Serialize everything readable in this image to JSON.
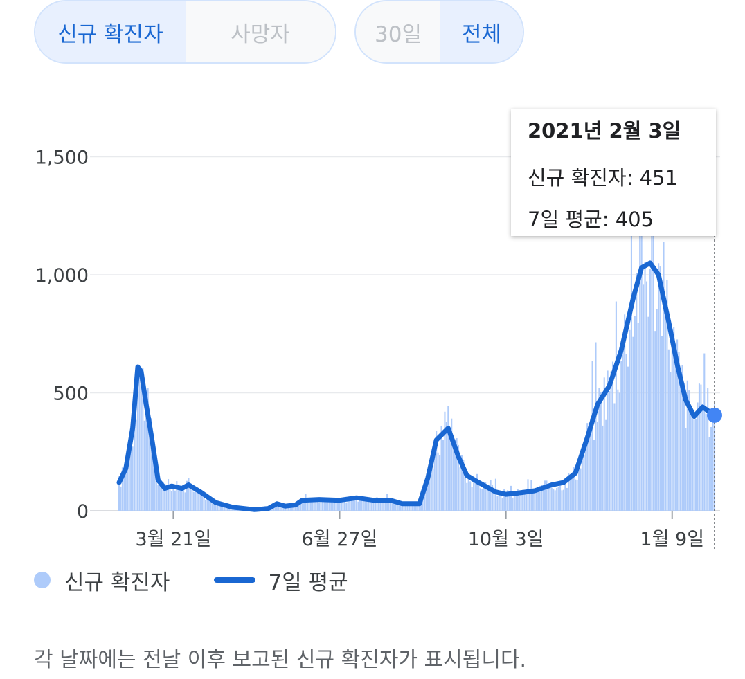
{
  "toggles": {
    "metric": {
      "options": [
        "신규 확진자",
        "사망자"
      ],
      "selected": "신규 확진자"
    },
    "range": {
      "options": [
        "30일",
        "전체"
      ],
      "selected": "전체"
    }
  },
  "tooltip": {
    "date": "2021년 2월 3일",
    "new_cases_label": "신규 확진자: 451",
    "avg_label": "7일 평균: 405"
  },
  "legend": {
    "bars": "신규 확진자",
    "line": "7일 평균"
  },
  "footnote": "각 날짜에는 전날 이후 보고된 신규 확진자가 표시됩니다.",
  "colors": {
    "bar": "#aecbfa",
    "line": "#1967d2",
    "active_bg": "#e8f0fe",
    "active_text": "#1967d2",
    "inactive_text": "#bdc1c6"
  },
  "chart_data": {
    "type": "bar",
    "title": "",
    "xlabel": "",
    "ylabel": "",
    "ylim": [
      0,
      1800
    ],
    "y_ticks": [
      0,
      500,
      1000,
      1500
    ],
    "y_tick_labels": [
      "0",
      "500",
      "1,000",
      "1,500"
    ],
    "x_tick_labels": [
      {
        "label": "3월 21일",
        "date": "2020-03-21"
      },
      {
        "label": "6월 27일",
        "date": "2020-06-27"
      },
      {
        "label": "10월 3일",
        "date": "2020-10-03"
      },
      {
        "label": "1월 9일",
        "date": "2021-01-09"
      }
    ],
    "x_range": [
      "2020-02-18",
      "2021-02-03"
    ],
    "series": [
      {
        "name": "신규 확진자",
        "kind": "bar",
        "daily_estimates": []
      },
      {
        "name": "7일 평균",
        "kind": "line",
        "points": [
          [
            "2020-02-18",
            120
          ],
          [
            "2020-02-22",
            180
          ],
          [
            "2020-02-26",
            350
          ],
          [
            "2020-02-29",
            610
          ],
          [
            "2020-03-02",
            590
          ],
          [
            "2020-03-05",
            450
          ],
          [
            "2020-03-08",
            320
          ],
          [
            "2020-03-12",
            130
          ],
          [
            "2020-03-16",
            95
          ],
          [
            "2020-03-20",
            105
          ],
          [
            "2020-03-26",
            95
          ],
          [
            "2020-03-30",
            110
          ],
          [
            "2020-04-06",
            80
          ],
          [
            "2020-04-15",
            35
          ],
          [
            "2020-04-25",
            15
          ],
          [
            "2020-05-08",
            5
          ],
          [
            "2020-05-16",
            10
          ],
          [
            "2020-05-21",
            30
          ],
          [
            "2020-05-26",
            20
          ],
          [
            "2020-06-01",
            25
          ],
          [
            "2020-06-05",
            45
          ],
          [
            "2020-06-15",
            48
          ],
          [
            "2020-06-27",
            45
          ],
          [
            "2020-07-07",
            55
          ],
          [
            "2020-07-17",
            45
          ],
          [
            "2020-07-27",
            45
          ],
          [
            "2020-08-03",
            30
          ],
          [
            "2020-08-13",
            30
          ],
          [
            "2020-08-18",
            140
          ],
          [
            "2020-08-23",
            300
          ],
          [
            "2020-08-30",
            350
          ],
          [
            "2020-09-05",
            230
          ],
          [
            "2020-09-10",
            150
          ],
          [
            "2020-09-17",
            120
          ],
          [
            "2020-09-27",
            80
          ],
          [
            "2020-10-03",
            70
          ],
          [
            "2020-10-10",
            75
          ],
          [
            "2020-10-20",
            85
          ],
          [
            "2020-10-30",
            110
          ],
          [
            "2020-11-06",
            120
          ],
          [
            "2020-11-13",
            160
          ],
          [
            "2020-11-20",
            310
          ],
          [
            "2020-11-26",
            450
          ],
          [
            "2020-12-03",
            530
          ],
          [
            "2020-12-10",
            680
          ],
          [
            "2020-12-17",
            900
          ],
          [
            "2020-12-22",
            1030
          ],
          [
            "2020-12-27",
            1050
          ],
          [
            "2021-01-01",
            1000
          ],
          [
            "2021-01-07",
            800
          ],
          [
            "2021-01-12",
            620
          ],
          [
            "2021-01-17",
            470
          ],
          [
            "2021-01-22",
            400
          ],
          [
            "2021-01-27",
            440
          ],
          [
            "2021-02-03",
            405
          ]
        ]
      }
    ],
    "selected_point": {
      "date": "2021-02-03",
      "new_cases": 451,
      "avg": 405
    },
    "grid": "horizontal",
    "legend": "bottom-left"
  }
}
